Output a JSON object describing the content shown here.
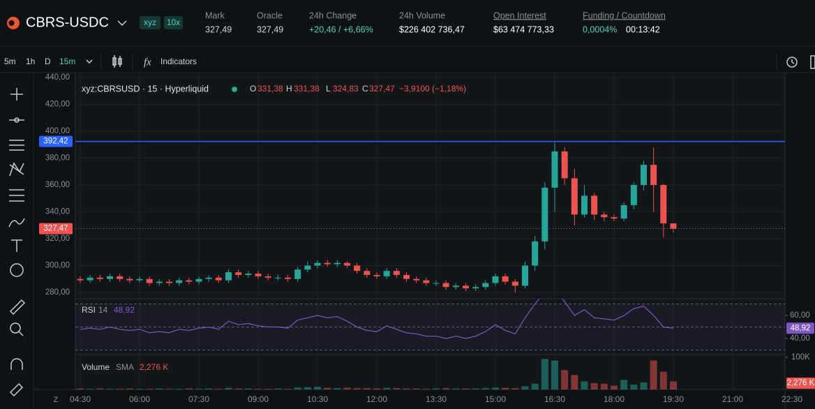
{
  "header": {
    "symbol": "CBRS-USDC",
    "badges": [
      "xyz",
      "10x"
    ],
    "stats": [
      {
        "label": "Mark",
        "value": "327,49"
      },
      {
        "label": "Oracle",
        "value": "327,49"
      },
      {
        "label": "24h Change",
        "value": "+20,46 / +6,66%"
      },
      {
        "label": "24h Volume",
        "value": "$226 402 736,47"
      },
      {
        "label": "Open Interest",
        "value": "$63 474 773,33"
      },
      {
        "label": "Funding / Countdown",
        "value": "0,0004%",
        "extra": "00:13:42"
      }
    ]
  },
  "toolbar": {
    "intervals": [
      "5m",
      "1h",
      "D",
      "15m"
    ],
    "indicators": "Indicators"
  },
  "chart_data": {
    "type": "candlestick",
    "title": "xyz:CBRSUSD · 15 · Hyperliquid",
    "ohlc_legend": [
      {
        "key": "O",
        "value": "331,38"
      },
      {
        "key": "H",
        "value": "331,38"
      },
      {
        "key": "L",
        "value": "324,83"
      },
      {
        "key": "C",
        "value": "327,47"
      }
    ],
    "change": "−3,9100 (−1,18%)",
    "up_color": "#26a69a",
    "down_color": "#ef5350",
    "open": [
      290,
      289,
      291,
      290,
      292,
      290,
      289,
      290,
      287,
      288,
      287,
      289,
      288,
      290,
      291,
      289,
      295,
      293,
      294,
      292,
      291,
      291,
      290,
      297,
      300,
      302,
      301,
      302,
      300,
      296,
      293,
      292,
      296,
      293,
      290,
      289,
      287,
      287,
      284,
      285,
      283,
      284,
      287,
      292,
      288,
      285,
      300,
      318,
      358,
      385,
      365,
      338,
      352,
      338,
      336,
      335,
      345,
      360,
      375,
      360,
      331.38
    ],
    "high": [
      292,
      293,
      293,
      294,
      294,
      292,
      292,
      292,
      290,
      290,
      291,
      291,
      292,
      293,
      293,
      297,
      297,
      296,
      296,
      294,
      293,
      293,
      299,
      303,
      304,
      304,
      304,
      303,
      302,
      298,
      295,
      298,
      298,
      295,
      292,
      291,
      289,
      289,
      287,
      287,
      286,
      289,
      294,
      294,
      290,
      303,
      322,
      362,
      392,
      388,
      372,
      360,
      354,
      340,
      338,
      347,
      362,
      378,
      388,
      361,
      331.38
    ],
    "low": [
      287,
      287,
      288,
      288,
      288,
      287,
      287,
      285,
      285,
      285,
      285,
      286,
      286,
      288,
      287,
      287,
      291,
      291,
      290,
      289,
      289,
      288,
      288,
      295,
      298,
      299,
      299,
      298,
      294,
      291,
      290,
      290,
      291,
      288,
      287,
      285,
      285,
      282,
      282,
      281,
      281,
      282,
      285,
      286,
      280,
      283,
      296,
      312,
      340,
      360,
      330,
      336,
      334,
      333,
      333,
      333,
      342,
      356,
      340,
      321,
      324.83
    ],
    "close": [
      289,
      291,
      290,
      292,
      290,
      289,
      290,
      287,
      288,
      287,
      289,
      288,
      290,
      291,
      289,
      295,
      293,
      294,
      292,
      291,
      291,
      290,
      297,
      300,
      302,
      301,
      302,
      300,
      296,
      293,
      292,
      296,
      293,
      290,
      289,
      287,
      287,
      284,
      285,
      283,
      284,
      287,
      292,
      288,
      285,
      300,
      318,
      358,
      385,
      365,
      338,
      352,
      338,
      336,
      335,
      345,
      360,
      375,
      360,
      331.38,
      327.47
    ],
    "ylim": [
      275.3,
      443.7
    ],
    "yticks": [
      {
        "value": 280,
        "label": "280,00"
      },
      {
        "value": 300,
        "label": "300,00"
      },
      {
        "value": 320,
        "label": "320,00"
      },
      {
        "value": 340,
        "label": "340,00"
      },
      {
        "value": 360,
        "label": "360,00"
      },
      {
        "value": 380,
        "label": "380,00"
      },
      {
        "value": 400,
        "label": "400,00"
      },
      {
        "value": 420,
        "label": "420,00"
      },
      {
        "value": 440,
        "label": "440,00"
      }
    ],
    "grid": true,
    "price_line": {
      "value": 392.42,
      "label": "392,42",
      "color": "#2962ff"
    },
    "last_price": {
      "value": 327.47,
      "label": "327,47"
    },
    "time_labels": [
      "04:30",
      "06:00",
      "07:30",
      "09:00",
      "10:30",
      "12:00",
      "13:30",
      "15:00",
      "16:30",
      "18:00",
      "19:30",
      "21:00",
      "22:30"
    ],
    "rsi": {
      "label": "RSI",
      "period": "14",
      "value": 48.92,
      "value_label": "48,92",
      "color": "#7e57c2",
      "values": [
        48,
        49,
        48,
        50,
        48,
        47,
        48,
        45,
        46,
        45,
        48,
        47,
        49,
        50,
        48,
        55,
        52,
        53,
        51,
        50,
        50,
        49,
        56,
        58,
        60,
        58,
        59,
        55,
        50,
        47,
        46,
        51,
        48,
        45,
        44,
        42,
        42,
        40,
        42,
        40,
        42,
        46,
        52,
        47,
        44,
        58,
        70,
        80,
        82,
        72,
        60,
        65,
        58,
        57,
        56,
        60,
        66,
        68,
        60,
        50,
        48.92
      ],
      "ylim": [
        26.1,
        74.5
      ],
      "yticks": [
        {
          "value": 60,
          "label": "60,00"
        },
        {
          "value": 40,
          "label": "40,00"
        }
      ],
      "levels": [
        70,
        50,
        30
      ]
    },
    "volume": {
      "label": "Volume",
      "sma_label": "SMA",
      "sma_value": 2.276,
      "sma_value_label": "2,276 K",
      "values": [
        3,
        2,
        3,
        2,
        2,
        3,
        2,
        2,
        3,
        2,
        2,
        3,
        2,
        3,
        2,
        5,
        3,
        3,
        2,
        2,
        3,
        2,
        6,
        7,
        8,
        5,
        4,
        5,
        4,
        4,
        3,
        5,
        4,
        3,
        3,
        2,
        3,
        4,
        3,
        3,
        3,
        4,
        6,
        5,
        4,
        10,
        18,
        95,
        90,
        60,
        45,
        25,
        20,
        18,
        12,
        30,
        15,
        22,
        90,
        55,
        25
      ],
      "ylim": [
        0,
        108.7
      ],
      "yticks": [
        {
          "value": 100,
          "label": "100K"
        }
      ]
    }
  }
}
